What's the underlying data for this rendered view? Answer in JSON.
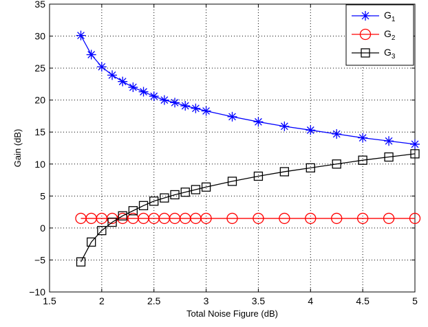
{
  "chart_data": {
    "type": "line",
    "xlabel": "Total Noise Figure (dB)",
    "ylabel": "Gain (dB)",
    "xlim": [
      1.5,
      5
    ],
    "ylim": [
      -10,
      35
    ],
    "xticks": [
      1.5,
      2,
      2.5,
      3,
      3.5,
      4,
      4.5,
      5
    ],
    "xtick_labels": [
      "1.5",
      "2",
      "2.5",
      "3",
      "3.5",
      "4",
      "4.5",
      "5"
    ],
    "yticks": [
      -10,
      -5,
      0,
      5,
      10,
      15,
      20,
      25,
      30,
      35
    ],
    "ytick_labels": [
      "−10",
      "−5",
      "0",
      "5",
      "10",
      "15",
      "20",
      "25",
      "30",
      "35"
    ],
    "grid": true,
    "legend_position": "top-right",
    "series": [
      {
        "name": "G",
        "subscript": "1",
        "color": "#0000ff",
        "marker": "asterisk",
        "x": [
          1.8,
          1.9,
          2.0,
          2.1,
          2.2,
          2.3,
          2.4,
          2.5,
          2.6,
          2.7,
          2.8,
          2.9,
          3.0,
          3.25,
          3.5,
          3.75,
          4.0,
          4.25,
          4.5,
          4.75,
          5.0
        ],
        "y": [
          30.1,
          27.1,
          25.2,
          23.9,
          22.9,
          22.0,
          21.3,
          20.6,
          20.0,
          19.6,
          19.1,
          18.7,
          18.3,
          17.4,
          16.6,
          15.9,
          15.3,
          14.7,
          14.1,
          13.6,
          13.1
        ]
      },
      {
        "name": "G",
        "subscript": "2",
        "color": "#ff0000",
        "marker": "circle",
        "x": [
          1.8,
          1.9,
          2.0,
          2.1,
          2.2,
          2.3,
          2.4,
          2.5,
          2.6,
          2.7,
          2.8,
          2.9,
          3.0,
          3.25,
          3.5,
          3.75,
          4.0,
          4.25,
          4.5,
          4.75,
          5.0
        ],
        "y": [
          1.5,
          1.5,
          1.5,
          1.5,
          1.5,
          1.5,
          1.5,
          1.5,
          1.5,
          1.5,
          1.5,
          1.5,
          1.5,
          1.5,
          1.5,
          1.5,
          1.5,
          1.5,
          1.5,
          1.5,
          1.5
        ]
      },
      {
        "name": "G",
        "subscript": "3",
        "color": "#000000",
        "marker": "square",
        "x": [
          1.8,
          1.9,
          2.0,
          2.1,
          2.2,
          2.3,
          2.4,
          2.5,
          2.6,
          2.7,
          2.8,
          2.9,
          3.0,
          3.25,
          3.5,
          3.75,
          4.0,
          4.25,
          4.5,
          4.75,
          5.0
        ],
        "y": [
          -5.3,
          -2.2,
          -0.4,
          0.9,
          1.9,
          2.7,
          3.5,
          4.2,
          4.7,
          5.2,
          5.6,
          6.0,
          6.4,
          7.3,
          8.1,
          8.8,
          9.4,
          10.0,
          10.6,
          11.1,
          11.6
        ]
      }
    ]
  }
}
